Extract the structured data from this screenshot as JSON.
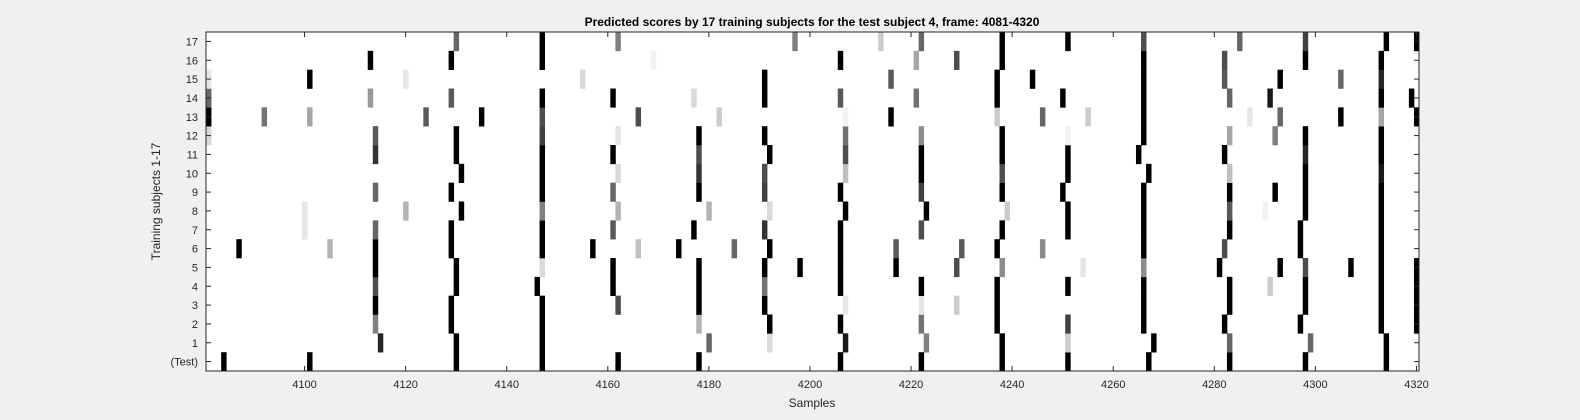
{
  "chart_data": {
    "type": "heatmap",
    "title": "Predicted scores by 17 training subjects for the test subject 4, frame: 4081-4320",
    "xlabel": "Samples",
    "ylabel": "Training subjects 1-17",
    "xlim": [
      4081,
      4320
    ],
    "xticks": [
      4100,
      4120,
      4140,
      4160,
      4180,
      4200,
      4220,
      4240,
      4260,
      4280,
      4300,
      4320
    ],
    "rows": [
      "(Test)",
      "1",
      "2",
      "3",
      "4",
      "5",
      "6",
      "7",
      "8",
      "9",
      "10",
      "11",
      "12",
      "13",
      "14",
      "15",
      "16",
      "17"
    ],
    "colormap": "gray (1 = black, 0 = white)",
    "cells": [
      {
        "row": "(Test)",
        "marks": [
          [
            4084,
            1
          ],
          [
            4101,
            1
          ],
          [
            4130,
            1
          ],
          [
            4147,
            1
          ],
          [
            4162,
            1
          ],
          [
            4178,
            1
          ],
          [
            4206,
            1
          ],
          [
            4222,
            1
          ],
          [
            4238,
            1
          ],
          [
            4251,
            1
          ],
          [
            4267,
            1
          ],
          [
            4283,
            1
          ],
          [
            4298,
            1
          ],
          [
            4314,
            1
          ]
        ]
      },
      {
        "row": "1",
        "marks": [
          [
            4115,
            0.85
          ],
          [
            4130,
            1
          ],
          [
            4147,
            1
          ],
          [
            4180,
            0.6
          ],
          [
            4192,
            0.15
          ],
          [
            4207,
            0.9
          ],
          [
            4223,
            0.5
          ],
          [
            4238,
            1
          ],
          [
            4251,
            0.2
          ],
          [
            4268,
            1
          ],
          [
            4283,
            0.6
          ],
          [
            4299,
            0.6
          ],
          [
            4314,
            1
          ]
        ]
      },
      {
        "row": "2",
        "marks": [
          [
            4114,
            0.5
          ],
          [
            4129,
            1
          ],
          [
            4147,
            1
          ],
          [
            4178,
            0.3
          ],
          [
            4192,
            1
          ],
          [
            4206,
            1
          ],
          [
            4222,
            0.55
          ],
          [
            4237,
            1
          ],
          [
            4251,
            0.75
          ],
          [
            4266,
            1
          ],
          [
            4282,
            1
          ],
          [
            4297,
            1
          ],
          [
            4313,
            1
          ],
          [
            4320,
            1
          ]
        ]
      },
      {
        "row": "3",
        "marks": [
          [
            4114,
            1
          ],
          [
            4129,
            1
          ],
          [
            4147,
            1
          ],
          [
            4162,
            0.7
          ],
          [
            4178,
            1
          ],
          [
            4191,
            1
          ],
          [
            4207,
            0.1
          ],
          [
            4222,
            0.1
          ],
          [
            4229,
            0.2
          ],
          [
            4237,
            1
          ],
          [
            4266,
            1
          ],
          [
            4283,
            1
          ],
          [
            4298,
            1
          ],
          [
            4313,
            1
          ],
          [
            4320,
            1
          ]
        ]
      },
      {
        "row": "4",
        "marks": [
          [
            4114,
            0.7
          ],
          [
            4130,
            1
          ],
          [
            4146,
            1
          ],
          [
            4161,
            1
          ],
          [
            4178,
            1
          ],
          [
            4191,
            0.55
          ],
          [
            4206,
            1
          ],
          [
            4222,
            1
          ],
          [
            4237,
            1
          ],
          [
            4251,
            1
          ],
          [
            4266,
            1
          ],
          [
            4283,
            1
          ],
          [
            4291,
            0.2
          ],
          [
            4298,
            1
          ],
          [
            4313,
            1
          ],
          [
            4320,
            1
          ]
        ]
      },
      {
        "row": "5",
        "marks": [
          [
            4114,
            1
          ],
          [
            4130,
            1
          ],
          [
            4147,
            0.15
          ],
          [
            4161,
            1
          ],
          [
            4178,
            1
          ],
          [
            4191,
            1
          ],
          [
            4198,
            1
          ],
          [
            4206,
            1
          ],
          [
            4217,
            1
          ],
          [
            4229,
            0.7
          ],
          [
            4238,
            0.45
          ],
          [
            4254,
            0.1
          ],
          [
            4266,
            0.45
          ],
          [
            4281,
            1
          ],
          [
            4293,
            1
          ],
          [
            4298,
            0.7
          ],
          [
            4307,
            1
          ],
          [
            4313,
            1
          ],
          [
            4320,
            1
          ]
        ]
      },
      {
        "row": "6",
        "marks": [
          [
            4087,
            1
          ],
          [
            4105,
            0.3
          ],
          [
            4114,
            1
          ],
          [
            4129,
            1
          ],
          [
            4147,
            1
          ],
          [
            4157,
            1
          ],
          [
            4166,
            0.25
          ],
          [
            4174,
            1
          ],
          [
            4185,
            0.6
          ],
          [
            4192,
            1
          ],
          [
            4206,
            1
          ],
          [
            4217,
            0.65
          ],
          [
            4230,
            0.65
          ],
          [
            4237,
            1
          ],
          [
            4246,
            0.45
          ],
          [
            4266,
            1
          ],
          [
            4282,
            0.7
          ],
          [
            4297,
            1
          ],
          [
            4313,
            1
          ]
        ]
      },
      {
        "row": "7",
        "marks": [
          [
            4100,
            0.1
          ],
          [
            4114,
            0.6
          ],
          [
            4129,
            1
          ],
          [
            4147,
            1
          ],
          [
            4161,
            0.65
          ],
          [
            4177,
            1
          ],
          [
            4191,
            0.8
          ],
          [
            4206,
            1
          ],
          [
            4222,
            0.7
          ],
          [
            4238,
            1
          ],
          [
            4251,
            1
          ],
          [
            4266,
            1
          ],
          [
            4283,
            1
          ],
          [
            4297,
            1
          ],
          [
            4313,
            1
          ]
        ]
      },
      {
        "row": "8",
        "marks": [
          [
            4100,
            0.1
          ],
          [
            4120,
            0.3
          ],
          [
            4131,
            1
          ],
          [
            4147,
            0.5
          ],
          [
            4162,
            0.3
          ],
          [
            4180,
            0.3
          ],
          [
            4192,
            0.15
          ],
          [
            4207,
            1
          ],
          [
            4223,
            1
          ],
          [
            4239,
            0.2
          ],
          [
            4251,
            1
          ],
          [
            4266,
            1
          ],
          [
            4283,
            0.65
          ],
          [
            4290,
            0.05
          ],
          [
            4298,
            1
          ],
          [
            4313,
            1
          ]
        ]
      },
      {
        "row": "9",
        "marks": [
          [
            4114,
            0.6
          ],
          [
            4129,
            1
          ],
          [
            4147,
            1
          ],
          [
            4161,
            0.6
          ],
          [
            4178,
            1
          ],
          [
            4191,
            0.75
          ],
          [
            4206,
            1
          ],
          [
            4222,
            0.75
          ],
          [
            4238,
            1
          ],
          [
            4250,
            1
          ],
          [
            4266,
            1
          ],
          [
            4283,
            1
          ],
          [
            4292,
            1
          ],
          [
            4298,
            1
          ],
          [
            4313,
            1
          ]
        ]
      },
      {
        "row": "10",
        "marks": [
          [
            4131,
            1
          ],
          [
            4147,
            1
          ],
          [
            4162,
            0.15
          ],
          [
            4178,
            0.8
          ],
          [
            4191,
            0.7
          ],
          [
            4207,
            0.25
          ],
          [
            4222,
            1
          ],
          [
            4238,
            0.7
          ],
          [
            4251,
            1
          ],
          [
            4267,
            1
          ],
          [
            4283,
            0.25
          ],
          [
            4298,
            1
          ],
          [
            4313,
            0.9
          ]
        ]
      },
      {
        "row": "11",
        "marks": [
          [
            4114,
            0.8
          ],
          [
            4130,
            1
          ],
          [
            4147,
            1
          ],
          [
            4161,
            1
          ],
          [
            4178,
            0.7
          ],
          [
            4192,
            1
          ],
          [
            4207,
            0.7
          ],
          [
            4222,
            1
          ],
          [
            4238,
            1
          ],
          [
            4251,
            1
          ],
          [
            4265,
            1
          ],
          [
            4282,
            1
          ],
          [
            4298,
            0.85
          ],
          [
            4313,
            1
          ]
        ]
      },
      {
        "row": "12",
        "marks": [
          [
            4081,
            0.15
          ],
          [
            4114,
            0.65
          ],
          [
            4130,
            1
          ],
          [
            4147,
            0.75
          ],
          [
            4162,
            0.1
          ],
          [
            4178,
            1
          ],
          [
            4191,
            1
          ],
          [
            4207,
            0.55
          ],
          [
            4222,
            0.45
          ],
          [
            4238,
            1
          ],
          [
            4251,
            0.05
          ],
          [
            4266,
            1
          ],
          [
            4283,
            0.35
          ],
          [
            4292,
            0.5
          ],
          [
            4298,
            1
          ],
          [
            4313,
            1
          ]
        ]
      },
      {
        "row": "13",
        "marks": [
          [
            4081,
            1
          ],
          [
            4092,
            0.55
          ],
          [
            4101,
            0.35
          ],
          [
            4124,
            0.65
          ],
          [
            4135,
            1
          ],
          [
            4147,
            0.7
          ],
          [
            4166,
            0.7
          ],
          [
            4182,
            0.2
          ],
          [
            4207,
            0.05
          ],
          [
            4216,
            1
          ],
          [
            4237,
            0.2
          ],
          [
            4246,
            0.6
          ],
          [
            4255,
            0.2
          ],
          [
            4266,
            1
          ],
          [
            4287,
            0.1
          ],
          [
            4293,
            0.6
          ],
          [
            4305,
            1
          ],
          [
            4313,
            0.35
          ],
          [
            4320,
            1
          ]
        ]
      },
      {
        "row": "14",
        "marks": [
          [
            4081,
            0.6
          ],
          [
            4113,
            0.4
          ],
          [
            4129,
            0.65
          ],
          [
            4147,
            1
          ],
          [
            4161,
            1
          ],
          [
            4177,
            0.15
          ],
          [
            4191,
            1
          ],
          [
            4206,
            0.65
          ],
          [
            4221,
            0.55
          ],
          [
            4237,
            1
          ],
          [
            4250,
            1
          ],
          [
            4266,
            1
          ],
          [
            4283,
            0.6
          ],
          [
            4291,
            0.9
          ],
          [
            4313,
            1
          ],
          [
            4319,
            1
          ]
        ]
      },
      {
        "row": "15",
        "marks": [
          [
            4081,
            0.1
          ],
          [
            4101,
            1
          ],
          [
            4120,
            0.1
          ],
          [
            4155,
            0.15
          ],
          [
            4191,
            1
          ],
          [
            4216,
            0.65
          ],
          [
            4237,
            1
          ],
          [
            4244,
            1
          ],
          [
            4266,
            1
          ],
          [
            4282,
            0.65
          ],
          [
            4293,
            1
          ],
          [
            4305,
            0.6
          ],
          [
            4313,
            0.85
          ]
        ]
      },
      {
        "row": "16",
        "marks": [
          [
            4113,
            1
          ],
          [
            4129,
            1
          ],
          [
            4147,
            1
          ],
          [
            4169,
            0.05
          ],
          [
            4206,
            1
          ],
          [
            4221,
            0.35
          ],
          [
            4229,
            0.7
          ],
          [
            4238,
            1
          ],
          [
            4266,
            1
          ],
          [
            4282,
            0.7
          ],
          [
            4298,
            1
          ],
          [
            4313,
            1
          ]
        ]
      },
      {
        "row": "17",
        "marks": [
          [
            4130,
            0.6
          ],
          [
            4147,
            1
          ],
          [
            4162,
            0.5
          ],
          [
            4197,
            0.5
          ],
          [
            4214,
            0.2
          ],
          [
            4222,
            0.6
          ],
          [
            4238,
            1
          ],
          [
            4251,
            1
          ],
          [
            4266,
            0.7
          ],
          [
            4285,
            0.6
          ],
          [
            4298,
            0.75
          ],
          [
            4314,
            1
          ],
          [
            4320,
            1
          ]
        ]
      }
    ]
  }
}
